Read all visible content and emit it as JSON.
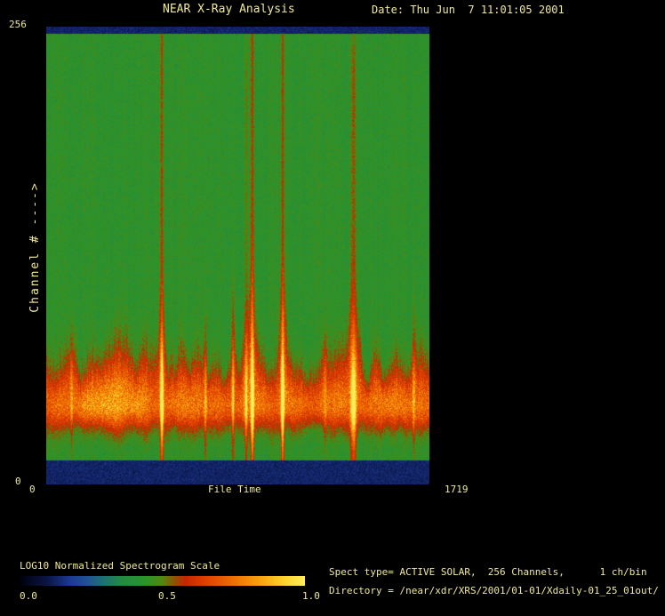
{
  "window": {
    "bg_color": "#000000",
    "text_color": "#EFE89A"
  },
  "header": {
    "title": "NEAR X-Ray Analysis",
    "date": "Date: Thu Jun  7 11:01:05 2001"
  },
  "axes": {
    "y_max": "256",
    "y_min": "0",
    "y_label": "Channel # ---->",
    "x_min": "0",
    "x_label": "File Time",
    "x_max": "1719"
  },
  "colorbar": {
    "label": "LOG10 Normalized Spectrogram Scale",
    "tick_low": "0.0",
    "tick_mid": "0.5",
    "tick_high": "1.0"
  },
  "footer": {
    "spect_info": "Spect type= ACTIVE SOLAR,  256 Channels,      1 ch/bin",
    "directory": "Directory = /near/xdr/XRS/2001/01-01/Xdaily-01_25_01out/"
  },
  "chart_data": {
    "type": "heatmap",
    "title": "NEAR X-Ray Analysis",
    "xlabel": "File Time",
    "ylabel": "Channel # ---->",
    "xlim": [
      0,
      1719
    ],
    "ylim": [
      0,
      256
    ],
    "colorbar_label": "LOG10 Normalized Spectrogram Scale",
    "colorbar_range": [
      0.0,
      1.0
    ],
    "colorbar_ticks": [
      0.0,
      0.5,
      1.0
    ],
    "palette_stops": [
      [
        0.0,
        0,
        0,
        10
      ],
      [
        0.1,
        12,
        22,
        72
      ],
      [
        0.18,
        28,
        58,
        148
      ],
      [
        0.24,
        32,
        84,
        150
      ],
      [
        0.3,
        30,
        116,
        110
      ],
      [
        0.36,
        36,
        138,
        64
      ],
      [
        0.44,
        42,
        148,
        42
      ],
      [
        0.5,
        82,
        136,
        18
      ],
      [
        0.54,
        140,
        86,
        6
      ],
      [
        0.58,
        196,
        38,
        2
      ],
      [
        0.64,
        222,
        58,
        0
      ],
      [
        0.74,
        238,
        106,
        2
      ],
      [
        0.84,
        248,
        160,
        14
      ],
      [
        0.92,
        252,
        208,
        40
      ],
      [
        1.0,
        255,
        238,
        90
      ]
    ],
    "background_level": 0.435,
    "border_bands": {
      "top_channels": [
        252,
        256
      ],
      "bottom_channels": [
        0,
        13
      ],
      "level": 0.13
    },
    "emission_band": {
      "center_channel": 44,
      "sigma_top": 14,
      "sigma_bottom": 9,
      "amplitude": 0.3
    },
    "hot_blob": {
      "time": 310,
      "amplitude": 0.13,
      "sigma_time": 85,
      "center_channel": 45
    },
    "events": [
      {
        "time": 112,
        "amplitude": 0.08,
        "width": 4,
        "top_channel": 70
      },
      {
        "time": 518,
        "amplitude": 0.3,
        "width": 5,
        "top_channel": 252
      },
      {
        "time": 714,
        "amplitude": 0.1,
        "width": 4,
        "top_channel": 80
      },
      {
        "time": 838,
        "amplitude": 0.15,
        "width": 4,
        "top_channel": 95
      },
      {
        "time": 897,
        "amplitude": 0.17,
        "width": 4,
        "top_channel": 230
      },
      {
        "time": 925,
        "amplitude": 0.3,
        "width": 5,
        "top_channel": 252
      },
      {
        "time": 1061,
        "amplitude": 0.32,
        "width": 5,
        "top_channel": 252
      },
      {
        "time": 1251,
        "amplitude": 0.06,
        "width": 5,
        "top_channel": 60
      },
      {
        "time": 1380,
        "amplitude": 0.22,
        "width": 9,
        "top_channel": 235
      },
      {
        "time": 1651,
        "amplitude": 0.09,
        "width": 4,
        "top_channel": 90
      }
    ],
    "spect_type": "ACTIVE SOLAR",
    "channels": 256,
    "channels_per_bin": 1,
    "directory": "/near/xdr/XRS/2001/01-01/Xdaily-01_25_01out/"
  }
}
